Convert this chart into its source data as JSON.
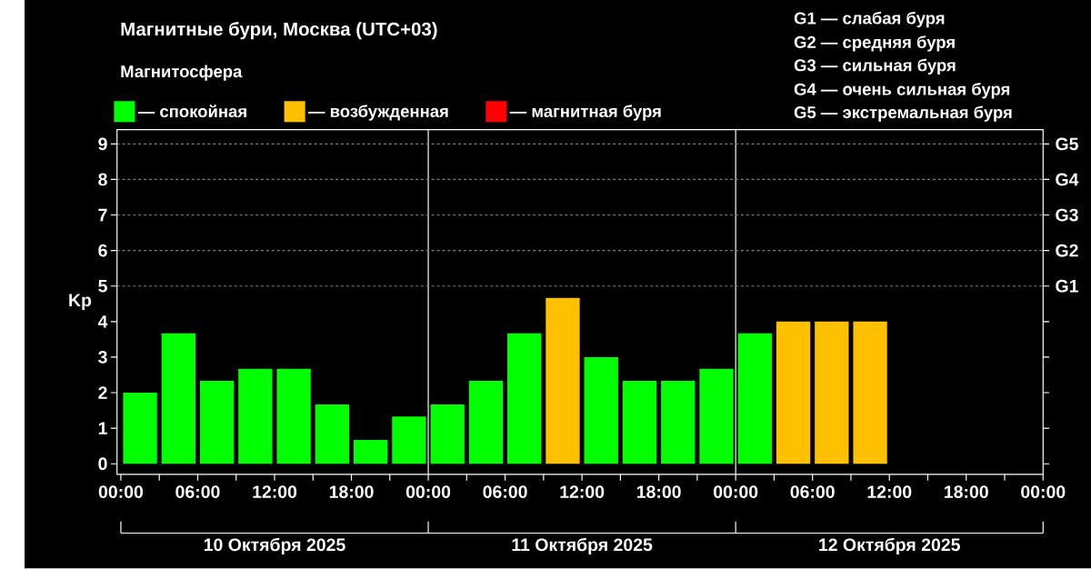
{
  "chart_data": {
    "type": "bar",
    "title": "Магнитные бури, Москва (UTC+03)",
    "subtitle": "Магнитосфера",
    "ylabel": "Kp",
    "x": [
      "2025-10-10T01:30",
      "2025-10-10T04:30",
      "2025-10-10T07:30",
      "2025-10-10T10:30",
      "2025-10-10T13:30",
      "2025-10-10T16:30",
      "2025-10-10T19:30",
      "2025-10-10T22:30",
      "2025-10-11T01:30",
      "2025-10-11T04:30",
      "2025-10-11T07:30",
      "2025-10-11T10:30",
      "2025-10-11T13:30",
      "2025-10-11T16:30",
      "2025-10-11T19:30",
      "2025-10-11T22:30",
      "2025-10-12T01:30",
      "2025-10-12T04:30",
      "2025-10-12T07:30",
      "2025-10-12T10:30"
    ],
    "series": [
      {
        "name": "— спокойная",
        "color": "#00ff00",
        "values": [
          2,
          3.67,
          2.33,
          2.67,
          2.67,
          1.67,
          0.67,
          1.33,
          1.67,
          2.33,
          3.67,
          null,
          3,
          2.33,
          2.33,
          2.67,
          3.67,
          null,
          null,
          null
        ]
      },
      {
        "name": "— возбужденная",
        "color": "#ffc000",
        "values": [
          null,
          null,
          null,
          null,
          null,
          null,
          null,
          null,
          null,
          null,
          null,
          4.67,
          null,
          null,
          null,
          null,
          null,
          4,
          4,
          4
        ]
      },
      {
        "name": "— магнитная буря",
        "color": "#ff0000",
        "values": [
          null,
          null,
          null,
          null,
          null,
          null,
          null,
          null,
          null,
          null,
          null,
          null,
          null,
          null,
          null,
          null,
          null,
          null,
          null,
          null
        ]
      }
    ],
    "xlim": [
      "2025-10-09T23:42",
      "2025-10-13T00:00"
    ],
    "ylim": [
      -0.3,
      9.4
    ],
    "xticks": [
      {
        "value": "2025-10-10T00:00",
        "label": "00:00"
      },
      {
        "value": "2025-10-10T03:00",
        "label": null
      },
      {
        "value": "2025-10-10T06:00",
        "label": "06:00"
      },
      {
        "value": "2025-10-10T09:00",
        "label": null
      },
      {
        "value": "2025-10-10T12:00",
        "label": "12:00"
      },
      {
        "value": "2025-10-10T15:00",
        "label": null
      },
      {
        "value": "2025-10-10T18:00",
        "label": "18:00"
      },
      {
        "value": "2025-10-10T21:00",
        "label": null
      },
      {
        "value": "2025-10-11T00:00",
        "label": "00:00"
      },
      {
        "value": "2025-10-11T03:00",
        "label": null
      },
      {
        "value": "2025-10-11T06:00",
        "label": "06:00"
      },
      {
        "value": "2025-10-11T09:00",
        "label": null
      },
      {
        "value": "2025-10-11T12:00",
        "label": "12:00"
      },
      {
        "value": "2025-10-11T15:00",
        "label": null
      },
      {
        "value": "2025-10-11T18:00",
        "label": "18:00"
      },
      {
        "value": "2025-10-11T21:00",
        "label": null
      },
      {
        "value": "2025-10-12T00:00",
        "label": "00:00"
      },
      {
        "value": "2025-10-12T03:00",
        "label": null
      },
      {
        "value": "2025-10-12T06:00",
        "label": "06:00"
      },
      {
        "value": "2025-10-12T09:00",
        "label": null
      },
      {
        "value": "2025-10-12T12:00",
        "label": "12:00"
      },
      {
        "value": "2025-10-12T15:00",
        "label": null
      },
      {
        "value": "2025-10-12T18:00",
        "label": "18:00"
      },
      {
        "value": "2025-10-12T21:00",
        "label": null
      },
      {
        "value": "2025-10-13T00:00",
        "label": "00:00"
      }
    ],
    "yticks": [
      0,
      1,
      2,
      3,
      4,
      5,
      6,
      7,
      8,
      9
    ],
    "ref_lines": [
      {
        "axis": "x",
        "value": "2025-10-11T00:00",
        "color": "#ffffff",
        "line_style": "solid"
      },
      {
        "axis": "x",
        "value": "2025-10-12T00:00",
        "color": "#ffffff",
        "line_style": "solid"
      },
      {
        "axis": "y",
        "value": 5,
        "label": "G1",
        "color": "#808080",
        "line_style": "dashed"
      },
      {
        "axis": "y",
        "value": 6,
        "label": "G2",
        "color": "#808080",
        "line_style": "dashed"
      },
      {
        "axis": "y",
        "value": 7,
        "label": "G3",
        "color": "#808080",
        "line_style": "dashed"
      },
      {
        "axis": "y",
        "value": 8,
        "label": "G4",
        "color": "#808080",
        "line_style": "dashed"
      },
      {
        "axis": "y",
        "value": 9,
        "label": "G5",
        "color": "#808080",
        "line_style": "dashed"
      }
    ],
    "legend": "top left",
    "annotations": [
      "G1 — слабая буря",
      "G2 — средняя буря",
      "G3 — сильная буря",
      "G4 — очень сильная буря",
      "G5 — экстремальная буря",
      "10 Октября 2025",
      "11 Октября 2025",
      "12 Октября 2025"
    ]
  }
}
